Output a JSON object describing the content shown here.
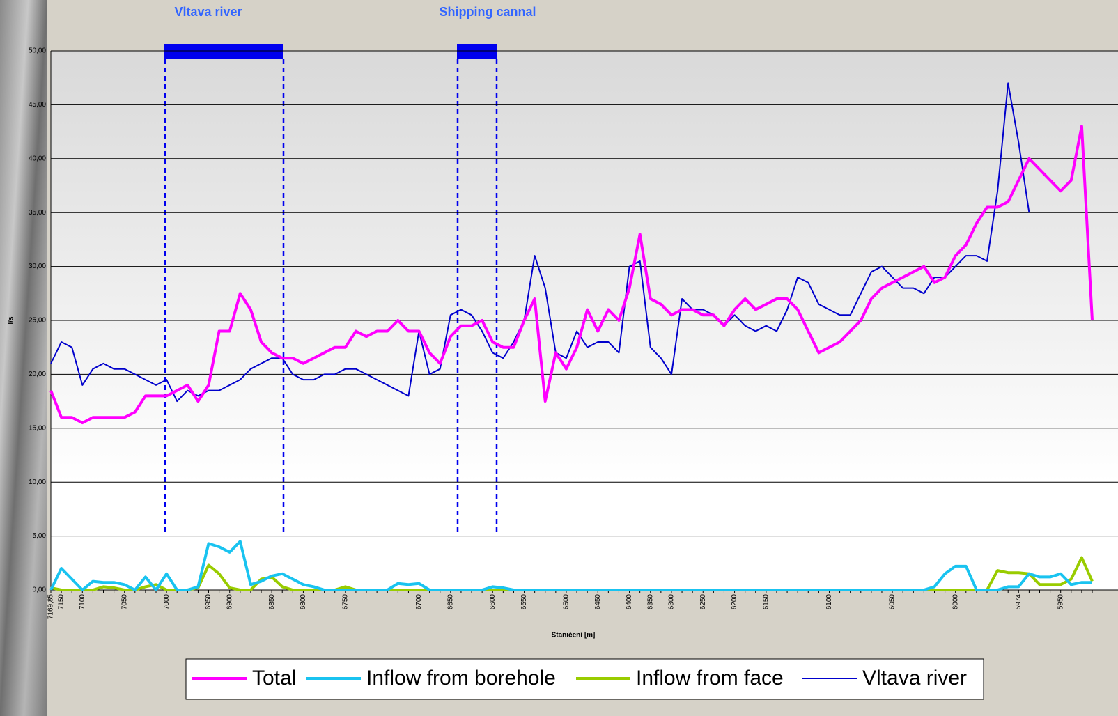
{
  "chart_data": {
    "type": "line",
    "annotations": [
      "Vltava river",
      "Shipping cannal"
    ],
    "ylabel": "l/s",
    "xlabel": "Staničení [m]",
    "categories": [
      "7169,85",
      "7150",
      null,
      "7100",
      null,
      null,
      null,
      "7050",
      null,
      null,
      null,
      "7000",
      null,
      null,
      null,
      "6950",
      null,
      "6900",
      null,
      null,
      null,
      "6850",
      null,
      null,
      "6800",
      null,
      null,
      null,
      "6750",
      null,
      null,
      null,
      null,
      null,
      null,
      "6700",
      null,
      null,
      "6650",
      null,
      null,
      null,
      "6600",
      null,
      null,
      "6550",
      null,
      null,
      null,
      "6500",
      null,
      null,
      "6450",
      null,
      null,
      "6400",
      null,
      "6350",
      null,
      "6300",
      null,
      null,
      "6250",
      null,
      null,
      "6200",
      null,
      null,
      "6150",
      null,
      null,
      null,
      null,
      null,
      "6100",
      null,
      null,
      null,
      null,
      null,
      "6050",
      null,
      null,
      null,
      null,
      null,
      "6000",
      null,
      null,
      null,
      null,
      null,
      "5974",
      null,
      null,
      null,
      "5950",
      null,
      null,
      null
    ],
    "series": [
      {
        "name": "Total",
        "color": "#ff00ff",
        "values": [
          18.5,
          16,
          16,
          15.5,
          16,
          16,
          16,
          16,
          16.5,
          18,
          18,
          18,
          18.5,
          19,
          17.5,
          19,
          24,
          24,
          27.5,
          26,
          23,
          22,
          21.5,
          21.5,
          21,
          21.5,
          22,
          22.5,
          22.5,
          24,
          23.5,
          24,
          24,
          25,
          24,
          24,
          22,
          21,
          23.5,
          24.5,
          24.5,
          25,
          23,
          22.5,
          22.5,
          25,
          27,
          17.5,
          22,
          20.5,
          22.5,
          26,
          24,
          26,
          25,
          28,
          33,
          27,
          26.5,
          25.5,
          26,
          26,
          25.5,
          25.5,
          24.5,
          26,
          27,
          26,
          26.5,
          27,
          27,
          26,
          24,
          22,
          22.5,
          23,
          24,
          25,
          27,
          28,
          28.5,
          29,
          29.5,
          30,
          28.5,
          29,
          31,
          32,
          34,
          35.5,
          35.5,
          36,
          38,
          40,
          39,
          38,
          37,
          38,
          43,
          25
        ]
      },
      {
        "name": "Inflow from borehole",
        "color": "#19c3f0",
        "values": [
          0,
          2,
          1,
          0,
          0.8,
          0.7,
          0.7,
          0.5,
          0,
          1.2,
          0,
          1.5,
          0,
          0,
          0.3,
          4.3,
          4,
          3.5,
          4.5,
          0.5,
          0.8,
          1.3,
          1.5,
          1,
          0.5,
          0.3,
          0,
          0,
          0,
          0,
          0,
          0,
          0,
          0.6,
          0.5,
          0.6,
          0,
          0,
          0,
          0,
          0,
          0,
          0.3,
          0.2,
          0,
          0,
          0,
          0,
          0,
          0,
          0,
          0,
          0,
          0,
          0,
          0,
          0,
          0,
          0,
          0,
          0,
          0,
          0,
          0,
          0,
          0,
          0,
          0,
          0,
          0,
          0,
          0,
          0,
          0,
          0,
          0,
          0,
          0,
          0,
          0,
          0,
          0,
          0,
          0,
          0.3,
          1.5,
          2.2,
          2.2,
          0,
          0,
          0,
          0.3,
          0.3,
          1.5,
          1.2,
          1.2,
          1.5,
          0.5,
          0.7,
          0.7
        ]
      },
      {
        "name": "Inflow from face",
        "color": "#99cc00",
        "values": [
          0.2,
          0,
          0,
          0,
          0,
          0.3,
          0.2,
          0,
          0,
          0.3,
          0.5,
          0,
          0,
          0,
          0.2,
          2.3,
          1.5,
          0.2,
          0,
          0,
          1,
          1.2,
          0.3,
          0,
          0,
          0,
          0,
          0,
          0.3,
          0,
          0,
          0,
          0,
          0,
          0,
          0,
          0,
          0,
          0,
          0,
          0,
          0,
          0,
          0,
          0,
          0,
          0,
          0,
          0,
          0,
          0,
          0,
          0,
          0,
          0,
          0,
          0,
          0,
          0,
          0,
          0,
          0,
          0,
          0,
          0,
          0,
          0,
          0,
          0,
          0,
          0,
          0,
          0,
          0,
          0,
          0,
          0,
          0,
          0,
          0,
          0,
          0,
          0,
          0,
          0,
          0,
          0,
          0,
          0,
          0,
          1.8,
          1.6,
          1.6,
          1.5,
          0.5,
          0.5,
          0.5,
          1,
          3,
          0.8
        ]
      },
      {
        "name": "Vltava river",
        "color": "#0000cc",
        "values": [
          21,
          23,
          22.5,
          19,
          20.5,
          21,
          20.5,
          20.5,
          20,
          19.5,
          19,
          19.5,
          17.5,
          18.5,
          18,
          18.5,
          18.5,
          19,
          19.5,
          20.5,
          21,
          21.5,
          21.5,
          20,
          19.5,
          19.5,
          20,
          20,
          20.5,
          20.5,
          20,
          19.5,
          19,
          18.5,
          18,
          24,
          20,
          20.5,
          25.5,
          26,
          25.5,
          24,
          22,
          21.5,
          23,
          25,
          31,
          28,
          22,
          21.5,
          24,
          22.5,
          23,
          23,
          22,
          30,
          30.5,
          22.5,
          21.5,
          20,
          27,
          26,
          26,
          25.5,
          24.5,
          25.5,
          24.5,
          24,
          24.5,
          24,
          26,
          29,
          28.5,
          26.5,
          26,
          25.5,
          25.5,
          27.5,
          29.5,
          30,
          29,
          28,
          28,
          27.5,
          29,
          29,
          30,
          31,
          31,
          30.5,
          37,
          47,
          41.5,
          35,
          null,
          null,
          null,
          null,
          null,
          null
        ]
      }
    ],
    "ylim": [
      0,
      50
    ],
    "yticks": [
      {
        "value": 0,
        "label": "0,00"
      },
      {
        "value": 5,
        "label": "5,00"
      },
      {
        "value": 10,
        "label": "10,00"
      },
      {
        "value": 15,
        "label": "15,00"
      },
      {
        "value": 20,
        "label": "20,00"
      },
      {
        "value": 25,
        "label": "25,00"
      },
      {
        "value": 30,
        "label": "30,00"
      },
      {
        "value": 35,
        "label": "35,00"
      },
      {
        "value": 40,
        "label": "40,00"
      },
      {
        "value": 45,
        "label": "45,00"
      },
      {
        "value": 50,
        "label": "50,00"
      }
    ],
    "grid": true,
    "legend": "bottom"
  }
}
